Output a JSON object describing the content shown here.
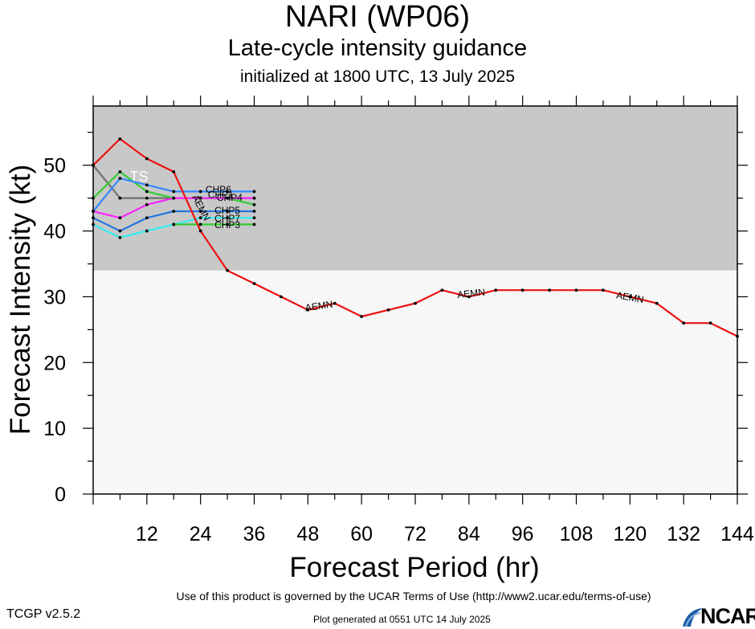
{
  "header": {
    "title": "NARI (WP06)",
    "subtitle": "Late-cycle intensity guidance",
    "init_line": "initialized at 1800 UTC, 13 July 2025"
  },
  "footer": {
    "terms": "Use of this product is governed by the UCAR Terms of Use (http://www2.ucar.edu/terms-of-use)",
    "version": "TCGP v2.5.2",
    "generated": "Plot generated at 0551 UTC   14 July 2025",
    "logo_text": "NCAR"
  },
  "colors": {
    "ts_band": "#c8c8c8",
    "td_band": "#f7f7f7",
    "AEMN": "#ee1111",
    "grey_model": "#707070",
    "green_model": "#33cc33",
    "blue_model": "#3388ff",
    "magenta_model": "#ff22ff",
    "steel_model": "#2277dd",
    "cyan_model": "#33eeee"
  },
  "chart_data": {
    "type": "line",
    "xlabel": "Forecast Period (hr)",
    "ylabel": "Forecast Intensity (kt)",
    "xlim": [
      0,
      144
    ],
    "ylim": [
      0,
      59
    ],
    "xticks": [
      12,
      24,
      36,
      48,
      60,
      72,
      84,
      96,
      108,
      120,
      132,
      144
    ],
    "yticks": [
      0,
      10,
      20,
      30,
      40,
      50
    ],
    "bands": [
      {
        "label": "",
        "from": 0,
        "to": 34,
        "color": "#f7f7f7"
      },
      {
        "label": "TS",
        "from": 34,
        "to": 59,
        "color": "#c8c8c8"
      }
    ],
    "series": [
      {
        "name": "AEMN",
        "color": "#ee1111",
        "x": [
          0,
          6,
          12,
          18,
          24,
          30,
          36,
          42,
          48,
          54,
          60,
          66,
          72,
          78,
          84,
          90,
          96,
          102,
          108,
          114,
          120,
          126,
          132,
          138,
          144
        ],
        "y": [
          50,
          54,
          51,
          49,
          40,
          34,
          32,
          30,
          28,
          29,
          27,
          28,
          29,
          31,
          30,
          31,
          31,
          31,
          31,
          31,
          30,
          29,
          26,
          26,
          24
        ],
        "labels": [
          {
            "x": 24,
            "y": 43.5,
            "rot": 62
          },
          {
            "x": 50.5,
            "y": 28.5,
            "rot": -8
          },
          {
            "x": 84.5,
            "y": 30.4,
            "rot": -6
          },
          {
            "x": 120,
            "y": 29.8,
            "rot": 10
          }
        ]
      },
      {
        "name": "",
        "color": "#707070",
        "x": [
          0,
          6,
          12,
          18,
          24,
          30,
          36
        ],
        "y": [
          50,
          45,
          45,
          45,
          45,
          45,
          45
        ],
        "labels": []
      },
      {
        "name": "CHP4",
        "color": "#33cc33",
        "x": [
          0,
          6,
          12,
          18,
          24,
          30,
          36
        ],
        "y": [
          45,
          49,
          46,
          45,
          45,
          45,
          44
        ],
        "labels": [
          {
            "x": 30.5,
            "y": 45,
            "rot": 0
          }
        ]
      },
      {
        "name": "CHP6",
        "color": "#3388ff",
        "x": [
          0,
          6,
          12,
          18,
          24,
          30,
          36
        ],
        "y": [
          43,
          48,
          47,
          46,
          46,
          46,
          46
        ],
        "labels": [
          {
            "x": 28,
            "y": 46.2,
            "rot": 0
          }
        ]
      },
      {
        "name": "CHP1",
        "color": "#ff22ff",
        "x": [
          0,
          6,
          12,
          18,
          24,
          30,
          36
        ],
        "y": [
          43,
          42,
          44,
          45,
          45,
          45,
          45
        ],
        "labels": [
          {
            "x": 28.5,
            "y": 45.4,
            "rot": 0
          }
        ]
      },
      {
        "name": "CHP5",
        "color": "#2277dd",
        "x": [
          0,
          6,
          12,
          18,
          24,
          30,
          36
        ],
        "y": [
          42,
          40,
          42,
          43,
          43,
          43,
          43
        ],
        "labels": [
          {
            "x": 30,
            "y": 43,
            "rot": 0
          }
        ]
      },
      {
        "name": "CHP7",
        "color": "#33eeee",
        "x": [
          0,
          6,
          12,
          18,
          24,
          30,
          36
        ],
        "y": [
          41,
          39,
          40,
          41,
          42,
          42,
          42
        ],
        "labels": [
          {
            "x": 30,
            "y": 41.8,
            "rot": 0
          }
        ]
      },
      {
        "name": "CHP3",
        "color": "#33cc33",
        "x": [
          18,
          24,
          30,
          36
        ],
        "y": [
          41,
          41,
          41,
          41
        ],
        "labels": [
          {
            "x": 30,
            "y": 40.8,
            "rot": 0
          }
        ]
      }
    ]
  }
}
